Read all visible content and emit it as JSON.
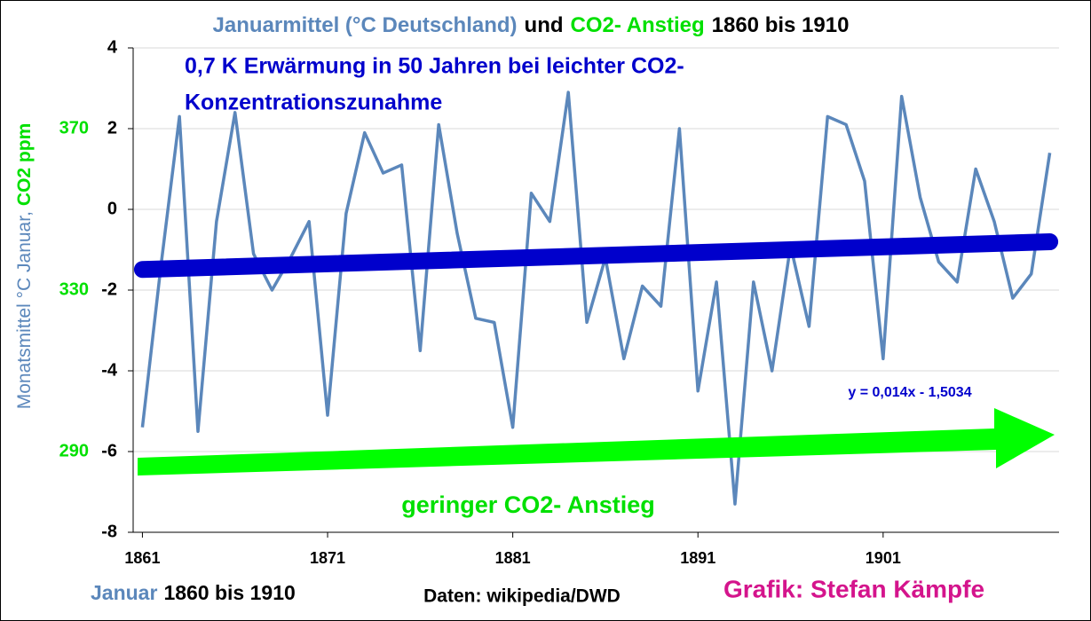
{
  "chart_data": {
    "type": "line",
    "title": [
      "Januarmittel (°C Deutschland)",
      "und",
      "CO2- Anstieg",
      "1860 bis 1910"
    ],
    "ylabel": [
      "Monatsmittel °C Januar,",
      "CO2 ppm"
    ],
    "x": [
      1861,
      1862,
      1863,
      1864,
      1865,
      1866,
      1867,
      1868,
      1869,
      1870,
      1871,
      1872,
      1873,
      1874,
      1875,
      1876,
      1877,
      1878,
      1879,
      1880,
      1881,
      1882,
      1883,
      1884,
      1885,
      1886,
      1887,
      1888,
      1889,
      1890,
      1891,
      1892,
      1893,
      1894,
      1895,
      1896,
      1897,
      1898,
      1899,
      1900,
      1901,
      1902,
      1903,
      1904,
      1905,
      1906,
      1907,
      1908,
      1909,
      1910
    ],
    "series": [
      {
        "color": "#5b87bb",
        "values": [
          -5.4,
          -1.4,
          2.3,
          -5.5,
          -0.3,
          2.4,
          -1.1,
          -2.0,
          -1.2,
          -0.3,
          -5.1,
          -0.1,
          1.9,
          0.9,
          1.1,
          -3.5,
          2.1,
          -0.6,
          -2.7,
          -2.8,
          -5.4,
          0.4,
          -0.3,
          2.9,
          -2.8,
          -1.2,
          -3.7,
          -1.9,
          -2.4,
          2.0,
          -4.5,
          -1.8,
          -7.3,
          -1.8,
          -4.0,
          -0.9,
          -2.9,
          2.3,
          2.1,
          0.7,
          -3.7,
          2.8,
          0.3,
          -1.3,
          -1.8,
          1.0,
          -0.3,
          -2.2,
          -1.6,
          1.4
        ]
      }
    ],
    "trendline": {
      "label": "y = 0,014x - 1,5034",
      "slope": 0.014,
      "intercept": -1.5034,
      "color": "#0000cc"
    },
    "xlim": [
      1860.5,
      1910.5
    ],
    "xticks": [
      1861,
      1871,
      1881,
      1891,
      1901
    ],
    "ylim": [
      -8,
      4
    ],
    "yticks": [
      4,
      2,
      0,
      -2,
      -4,
      -6,
      -8
    ],
    "y2lim": [
      270,
      390
    ],
    "y2ticks": [
      290,
      330,
      370
    ],
    "grid": true,
    "annotations": [
      "0,7 K Erwärmung in 50 Jahren bei leichter CO2-",
      "Konzentrationszunahme",
      "geringer CO2- Anstieg"
    ],
    "footer": [
      "Januar",
      "1860 bis 1910",
      "Daten: wikipedia/DWD",
      "Grafik: Stefan Kämpfe"
    ]
  }
}
